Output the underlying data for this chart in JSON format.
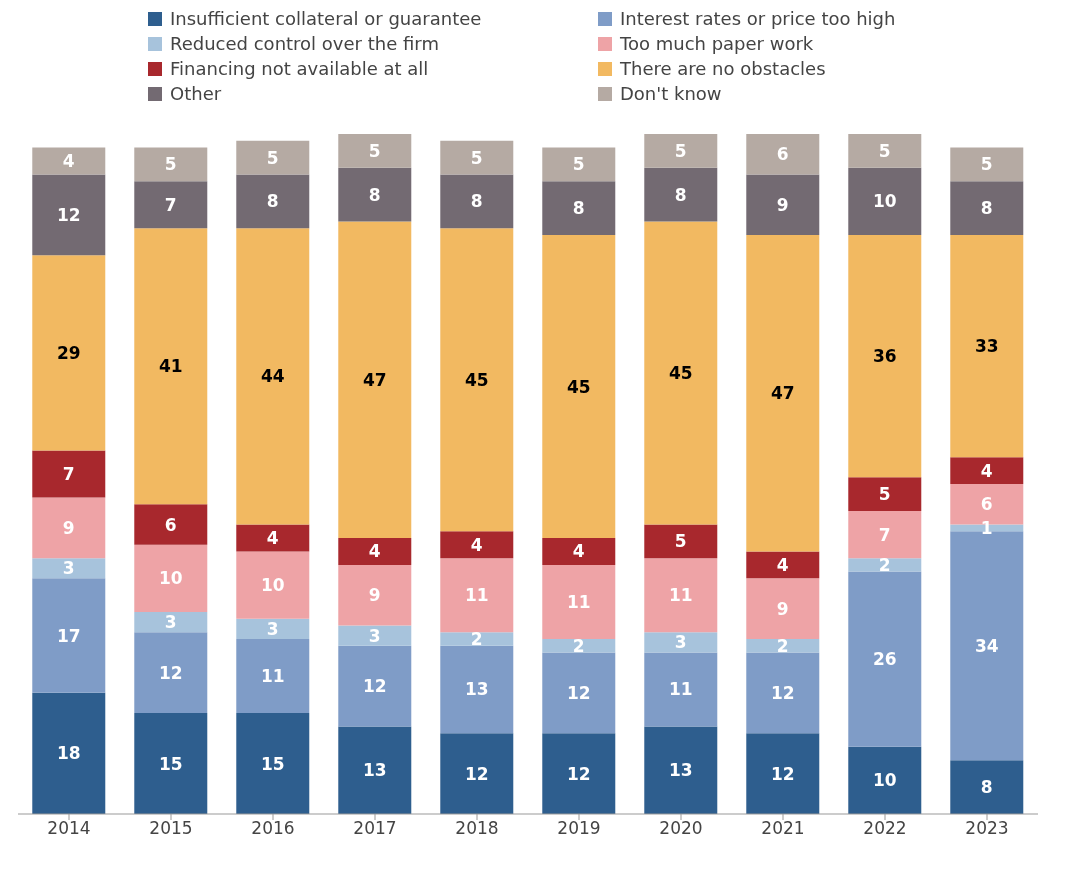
{
  "chart_data": {
    "type": "bar",
    "stacked": true,
    "data_labels": true,
    "legend": "top",
    "categories": [
      "2014",
      "2015",
      "2016",
      "2017",
      "2018",
      "2019",
      "2020",
      "2021",
      "2022",
      "2023"
    ],
    "series": [
      {
        "name": "Insufficient collateral or guarantee",
        "color": "#2e5e8e",
        "values": [
          18,
          15,
          15,
          13,
          12,
          12,
          13,
          12,
          10,
          8
        ]
      },
      {
        "name": "Interest rates or price too high",
        "color": "#7f9cc7",
        "values": [
          17,
          12,
          11,
          12,
          13,
          12,
          11,
          12,
          26,
          34
        ]
      },
      {
        "name": "Reduced control over the firm",
        "color": "#a7c3dc",
        "values": [
          3,
          3,
          3,
          3,
          2,
          2,
          3,
          2,
          2,
          1
        ]
      },
      {
        "name": "Too much paper work",
        "color": "#eea3a6",
        "values": [
          9,
          10,
          10,
          9,
          11,
          11,
          11,
          9,
          7,
          6
        ]
      },
      {
        "name": "Financing not available at all",
        "color": "#a8282d",
        "values": [
          7,
          6,
          4,
          4,
          4,
          4,
          5,
          4,
          5,
          4
        ]
      },
      {
        "name": "There are no obstacles",
        "color": "#f2b961",
        "values": [
          29,
          41,
          44,
          47,
          45,
          45,
          45,
          47,
          36,
          33
        ]
      },
      {
        "name": "Other",
        "color": "#736a72",
        "values": [
          12,
          7,
          8,
          8,
          8,
          8,
          8,
          9,
          10,
          8
        ]
      },
      {
        "name": "Don't know",
        "color": "#b5aaa3",
        "values": [
          4,
          5,
          5,
          5,
          5,
          5,
          5,
          6,
          5,
          5
        ]
      }
    ]
  }
}
